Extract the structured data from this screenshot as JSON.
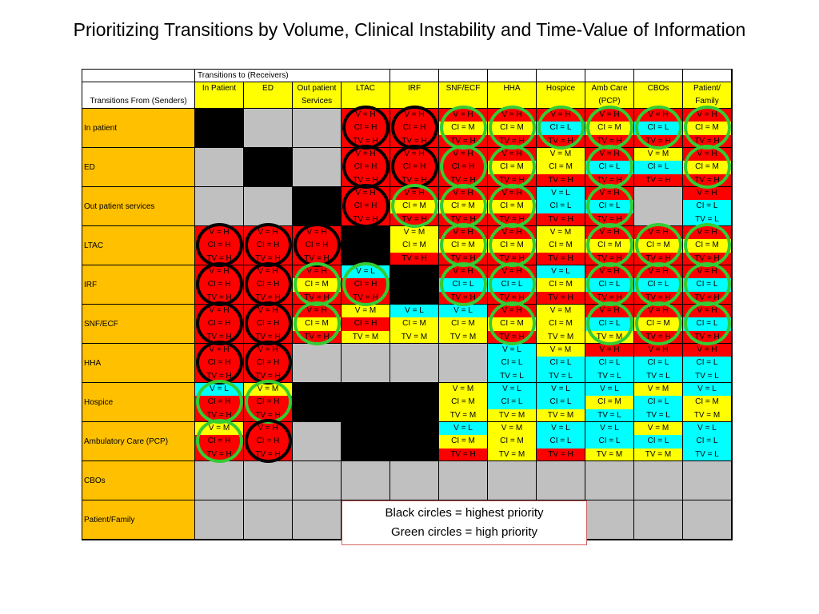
{
  "title": "Prioritizing Transitions by Volume, Clinical Instability and Time-Value of Information",
  "header": {
    "receivers_caption": "Transitions to (Receivers)",
    "senders_caption": "Transitions From (Senders)",
    "columns": [
      [
        "In Patient"
      ],
      [
        "ED"
      ],
      [
        "Out patient",
        "Services"
      ],
      [
        "LTAC"
      ],
      [
        "IRF"
      ],
      [
        "SNF/ECF"
      ],
      [
        "HHA"
      ],
      [
        "Hospice"
      ],
      [
        "Amb Care",
        "(PCP)"
      ],
      [
        "CBOs"
      ],
      [
        "Patient/",
        "Family"
      ]
    ]
  },
  "colors": {
    "H": "#ff0000",
    "M": "#ffff00",
    "L": "#00ffff",
    "black": "#000000",
    "gray": "#c0c0c0",
    "label": "#ffc000",
    "circle_black": "#000000",
    "circle_green": "#33cc33"
  },
  "rows": [
    {
      "label": "In patient",
      "cells": [
        "X",
        "G",
        "G",
        {
          "v": "H",
          "ci": "H",
          "tv": "H",
          "c": "b"
        },
        {
          "v": "H",
          "ci": "H",
          "tv": "H",
          "c": "b"
        },
        {
          "v": "H",
          "ci": "M",
          "tv": "H",
          "c": "g"
        },
        {
          "v": "H",
          "ci": "M",
          "tv": "H",
          "c": "g"
        },
        {
          "v": "H",
          "ci": "L",
          "tv": "H",
          "c": "g"
        },
        {
          "v": "H",
          "ci": "M",
          "tv": "H",
          "c": "g"
        },
        {
          "v": "H",
          "ci": "L",
          "tv": "H",
          "c": "g"
        },
        {
          "v": "H",
          "ci": "M",
          "tv": "H",
          "c": "g"
        }
      ]
    },
    {
      "label": "ED",
      "cells": [
        "G",
        "X",
        "G",
        {
          "v": "H",
          "ci": "H",
          "tv": "H",
          "c": "b"
        },
        {
          "v": "H",
          "ci": "H",
          "tv": "H",
          "c": "b"
        },
        {
          "v": "H",
          "ci": "H",
          "tv": "H",
          "c": "g"
        },
        {
          "v": "H",
          "ci": "M",
          "tv": "H",
          "c": "g"
        },
        {
          "v": "M",
          "ci": "M",
          "tv": "H"
        },
        {
          "v": "H",
          "ci": "L",
          "tv": "H",
          "c": "g"
        },
        {
          "v": "M",
          "ci": "L",
          "tv": "H"
        },
        {
          "v": "H",
          "ci": "M",
          "tv": "H",
          "c": "g"
        }
      ]
    },
    {
      "label": "Out patient services",
      "cells": [
        "G",
        "G",
        "X",
        {
          "v": "H",
          "ci": "H",
          "tv": "H",
          "c": "b"
        },
        {
          "v": "H",
          "ci": "M",
          "tv": "H",
          "c": "g"
        },
        {
          "v": "H",
          "ci": "M",
          "tv": "H",
          "c": "g"
        },
        {
          "v": "H",
          "ci": "M",
          "tv": "H",
          "c": "g"
        },
        {
          "v": "L",
          "ci": "L",
          "tv": "H"
        },
        {
          "v": "H",
          "ci": "L",
          "tv": "H",
          "c": "g"
        },
        "G",
        {
          "v": "H",
          "ci": "L",
          "tv": "L"
        }
      ]
    },
    {
      "label": "LTAC",
      "cells": [
        {
          "v": "H",
          "ci": "H",
          "tv": "H",
          "c": "b"
        },
        {
          "v": "H",
          "ci": "H",
          "tv": "H",
          "c": "b"
        },
        {
          "v": "H",
          "ci": "H",
          "tv": "H",
          "c": "b"
        },
        "X",
        {
          "v": "M",
          "ci": "M",
          "tv": "H"
        },
        {
          "v": "H",
          "ci": "M",
          "tv": "H",
          "c": "g"
        },
        {
          "v": "H",
          "ci": "M",
          "tv": "H",
          "c": "g"
        },
        {
          "v": "M",
          "ci": "M",
          "tv": "H"
        },
        {
          "v": "H",
          "ci": "M",
          "tv": "H",
          "c": "g"
        },
        {
          "v": "H",
          "ci": "M",
          "tv": "H",
          "c": "g"
        },
        {
          "v": "H",
          "ci": "M",
          "tv": "H",
          "c": "g"
        }
      ]
    },
    {
      "label": "IRF",
      "cells": [
        {
          "v": "H",
          "ci": "H",
          "tv": "H",
          "c": "b"
        },
        {
          "v": "H",
          "ci": "H",
          "tv": "H",
          "c": "b"
        },
        {
          "v": "H",
          "ci": "M",
          "tv": "H",
          "c": "g"
        },
        {
          "v": "L",
          "ci": "H",
          "tv": "H",
          "c": "g"
        },
        "X",
        {
          "v": "H",
          "ci": "L",
          "tv": "H",
          "c": "g"
        },
        {
          "v": "H",
          "ci": "L",
          "tv": "H",
          "c": "g"
        },
        {
          "v": "L",
          "ci": "M",
          "tv": "H"
        },
        {
          "v": "H",
          "ci": "L",
          "tv": "H",
          "c": "g"
        },
        {
          "v": "H",
          "ci": "L",
          "tv": "H",
          "c": "g"
        },
        {
          "v": "H",
          "ci": "L",
          "tv": "H",
          "c": "g"
        }
      ]
    },
    {
      "label": "SNF/ECF",
      "cells": [
        {
          "v": "H",
          "ci": "H",
          "tv": "H",
          "c": "b"
        },
        {
          "v": "H",
          "ci": "H",
          "tv": "H",
          "c": "b"
        },
        {
          "v": "H",
          "ci": "M",
          "tv": "H",
          "c": "g"
        },
        {
          "v": "M",
          "ci": "H",
          "tv": "M"
        },
        {
          "v": "L",
          "ci": "M",
          "tv": "M"
        },
        {
          "v": "L",
          "ci": "M",
          "tv": "M"
        },
        {
          "v": "H",
          "ci": "M",
          "tv": "H",
          "c": "g"
        },
        {
          "v": "M",
          "ci": "M",
          "tv": "M"
        },
        {
          "v": "H",
          "ci": "L",
          "tv": "M",
          "c": "g"
        },
        {
          "v": "H",
          "ci": "M",
          "tv": "H",
          "c": "g"
        },
        {
          "v": "H",
          "ci": "L",
          "tv": "H",
          "c": "g"
        }
      ]
    },
    {
      "label": "HHA",
      "cells": [
        {
          "v": "H",
          "ci": "H",
          "tv": "H",
          "c": "b"
        },
        {
          "v": "H",
          "ci": "H",
          "tv": "H",
          "c": "b"
        },
        "G",
        "G",
        "G",
        "G",
        {
          "v": "L",
          "ci": "L",
          "tv": "L"
        },
        {
          "v": "M",
          "ci": "L",
          "tv": "L"
        },
        {
          "v": "H",
          "ci": "L",
          "tv": "L"
        },
        {
          "v": "H",
          "ci": "L",
          "tv": "L"
        },
        {
          "v": "H",
          "ci": "L",
          "tv": "L"
        }
      ]
    },
    {
      "label": "Hospice",
      "cells": [
        {
          "v": "L",
          "ci": "H",
          "tv": "H",
          "c": "g"
        },
        {
          "v": "M",
          "ci": "H",
          "tv": "H",
          "c": "g"
        },
        "X",
        "X",
        "X",
        {
          "v": "M",
          "ci": "M",
          "tv": "M"
        },
        {
          "v": "L",
          "ci": "L",
          "tv": "M"
        },
        {
          "v": "L",
          "ci": "L",
          "tv": "M"
        },
        {
          "v": "L",
          "ci": "M",
          "tv": "L"
        },
        {
          "v": "M",
          "ci": "L",
          "tv": "L"
        },
        {
          "v": "L",
          "ci": "M",
          "tv": "M"
        }
      ]
    },
    {
      "label": "Ambulatory Care (PCP)",
      "cells": [
        {
          "v": "M",
          "ci": "H",
          "tv": "H",
          "c": "g"
        },
        {
          "v": "H",
          "ci": "H",
          "tv": "H",
          "c": "b"
        },
        "G",
        "X",
        "X",
        {
          "v": "L",
          "ci": "M",
          "tv": "H"
        },
        {
          "v": "M",
          "ci": "M",
          "tv": "M"
        },
        {
          "v": "L",
          "ci": "L",
          "tv": "H"
        },
        {
          "v": "L",
          "ci": "L",
          "tv": "M"
        },
        {
          "v": "M",
          "ci": "L",
          "tv": "M"
        },
        {
          "v": "L",
          "ci": "L",
          "tv": "L"
        }
      ]
    },
    {
      "label": "CBOs",
      "cells": [
        "G",
        "G",
        "G",
        "G",
        "G",
        "G",
        "G",
        "G",
        "G",
        "G",
        "G"
      ]
    },
    {
      "label": "Patient/Family",
      "cells": [
        "G",
        "G",
        "G",
        "G",
        "G",
        "G",
        "G",
        "G",
        "G",
        "G",
        "G"
      ]
    }
  ],
  "legend": {
    "line1": "Black circles = highest priority",
    "line2": "Green circles = high priority"
  }
}
